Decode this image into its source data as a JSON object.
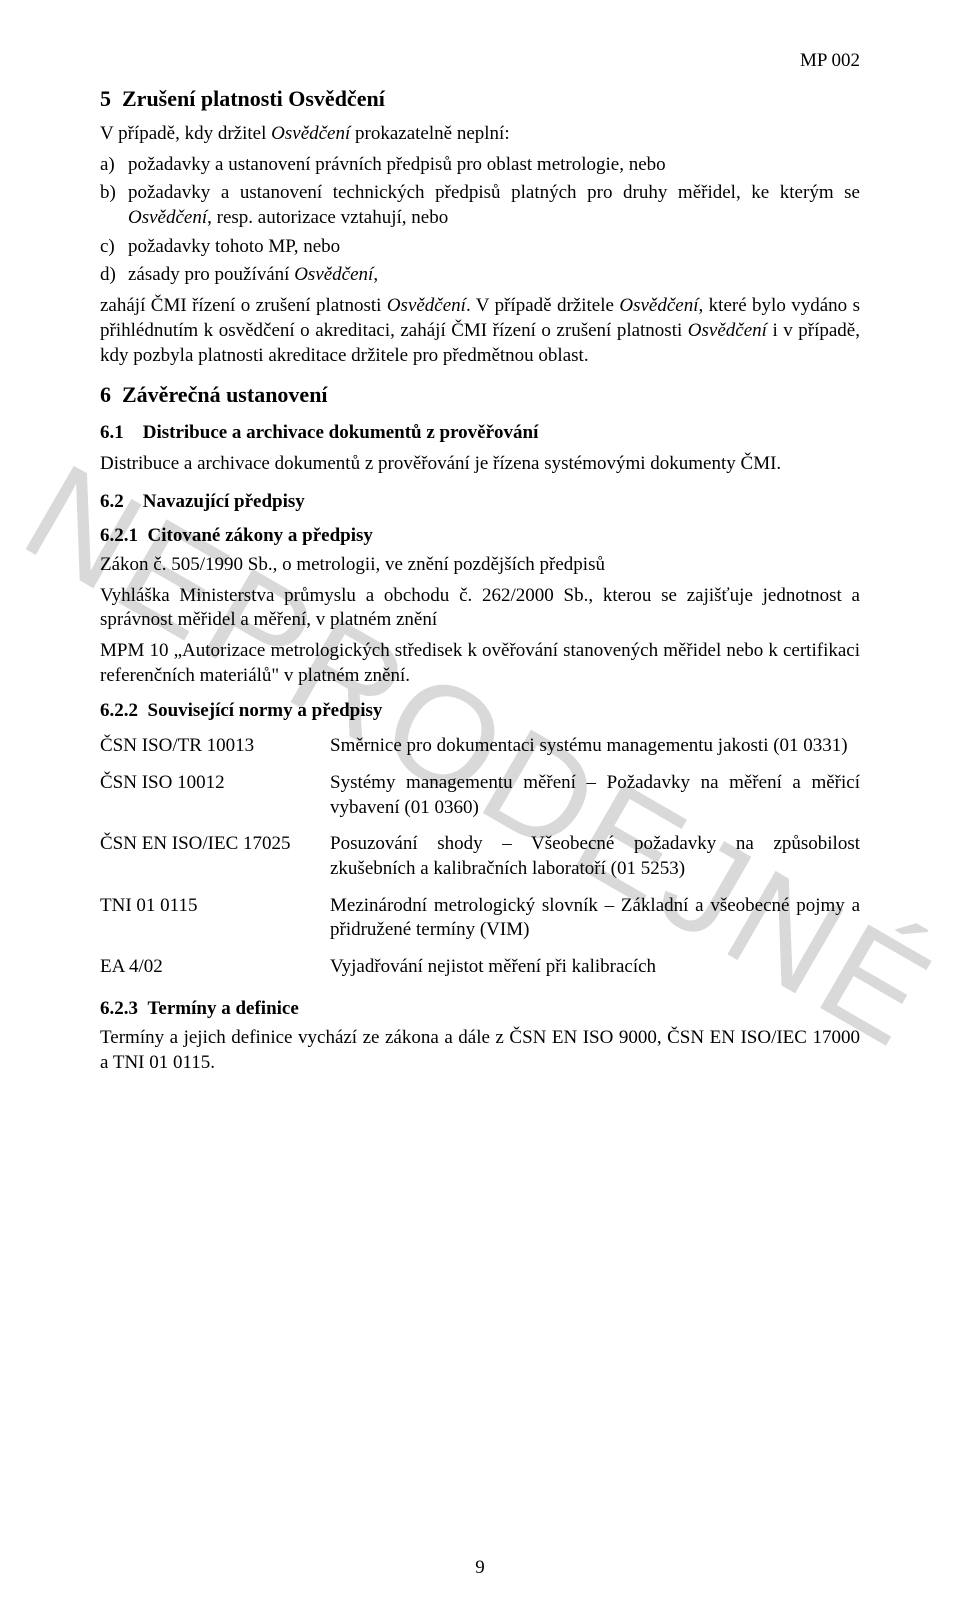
{
  "header_code": "MP 002",
  "watermark": "NEPRODEJNÉ",
  "s5": {
    "num": "5",
    "title": "Zrušení platnosti Osvědčení",
    "intro": "V případě, kdy držitel Osvědčení prokazatelně neplní:",
    "items": [
      {
        "m": "a)",
        "t": "požadavky a ustanovení právních předpisů pro oblast metrologie, nebo"
      },
      {
        "m": "b)",
        "t": "požadavky a ustanovení technických předpisů platných pro druhy měřidel, ke kterým se Osvědčení, resp. autorizace vztahují, nebo"
      },
      {
        "m": "c)",
        "t": "požadavky tohoto MP, nebo"
      },
      {
        "m": "d)",
        "t": "zásady pro používání Osvědčení,"
      }
    ],
    "post": "zahájí ČMI řízení o zrušení platnosti Osvědčení. V případě držitele Osvědčení, které bylo vydáno s přihlédnutím k osvědčení o akreditaci, zahájí ČMI řízení o zrušení platnosti Osvědčení i v případě, kdy pozbyla platnosti akreditace držitele pro předmětnou oblast."
  },
  "s6": {
    "num": "6",
    "title": "Závěrečná ustanovení",
    "s61": {
      "num": "6.1",
      "title": "Distribuce a archivace dokumentů z prověřování",
      "body": "Distribuce a archivace dokumentů z prověřování je řízena systémovými dokumenty ČMI."
    },
    "s62": {
      "num": "6.2",
      "title": "Navazující předpisy",
      "s621": {
        "num": "6.2.1",
        "title": "Citované zákony a předpisy",
        "p1": "Zákon č. 505/1990 Sb., o metrologii, ve znění pozdějších předpisů",
        "p2": "Vyhláška Ministerstva průmyslu a obchodu č. 262/2000 Sb., kterou se zajišťuje jednotnost a správnost měřidel a měření, v platném znění",
        "p3": "MPM 10 „Autorizace metrologických středisek k ověřování stanovených měřidel nebo k certifikaci referenčních materiálů\" v platném znění."
      },
      "s622": {
        "num": "6.2.2",
        "title": "Související normy a předpisy",
        "rows": [
          {
            "label": "ČSN ISO/TR 10013",
            "desc": "Směrnice pro dokumentaci systému managementu jakosti (01 0331)"
          },
          {
            "label": "ČSN ISO 10012",
            "desc": "Systémy managementu měření – Požadavky na měření a měřicí vybavení (01 0360)"
          },
          {
            "label": "ČSN EN ISO/IEC 17025",
            "desc": "Posuzování shody – Všeobecné požadavky na způsobilost zkušebních a kalibračních laboratoří (01 5253)"
          },
          {
            "label": "TNI 01 0115",
            "desc": "Mezinárodní metrologický slovník – Základní a všeobecné pojmy a přidružené termíny (VIM)"
          },
          {
            "label": "EA 4/02",
            "desc": "Vyjadřování nejistot měření při kalibracích"
          }
        ]
      },
      "s623": {
        "num": "6.2.3",
        "title": "Termíny a definice",
        "body": "Termíny a jejich definice vychází ze zákona a dále z ČSN EN ISO 9000, ČSN EN ISO/IEC 17000 a TNI 01 0115."
      }
    }
  },
  "page_number": "9"
}
